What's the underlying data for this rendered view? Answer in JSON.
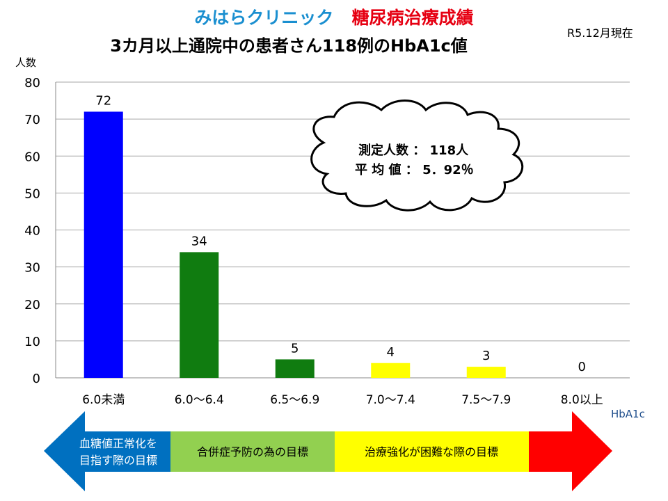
{
  "header": {
    "clinic_name": "みはらクリニック",
    "results_title": "糖尿病治療成績",
    "subtitle": "3カ月以上通院中の患者さん118例のHbA1c値",
    "as_of": "R5.12月現在"
  },
  "colors": {
    "blue": "#0000ff",
    "green": "#107c10",
    "yellow": "#ffff00",
    "arrow_blue": "#0070c0",
    "arrow_green": "#92d050",
    "arrow_red": "#ff0000"
  },
  "chart_data": {
    "type": "bar",
    "ylabel": "人数",
    "xlabel": "HbA1c",
    "ylim": [
      0,
      80
    ],
    "yticks": [
      0,
      10,
      20,
      30,
      40,
      50,
      60,
      70,
      80
    ],
    "grid": true,
    "categories": [
      "6.0未満",
      "6.0〜6.4",
      "6.5〜6.9",
      "7.0〜7.4",
      "7.5〜7.9",
      "8.0以上"
    ],
    "values": [
      72,
      34,
      5,
      4,
      3,
      0
    ],
    "data_labels": [
      "72",
      "34",
      "5",
      "4",
      "3",
      "0"
    ],
    "bar_colors": [
      "#0000ff",
      "#107c10",
      "#107c10",
      "#ffff00",
      "#ffff00",
      "#ffff00"
    ]
  },
  "callout": {
    "line1": "測定人数 ： 118人",
    "line2": "平 均 値 ： 5．92％"
  },
  "target_arrow": {
    "left_label_line1": "血糖値正常化を",
    "left_label_line2": "目指す際の目標",
    "middle_label": "合併症予防の為の目標",
    "right_label": "治療強化が困難な際の目標"
  }
}
